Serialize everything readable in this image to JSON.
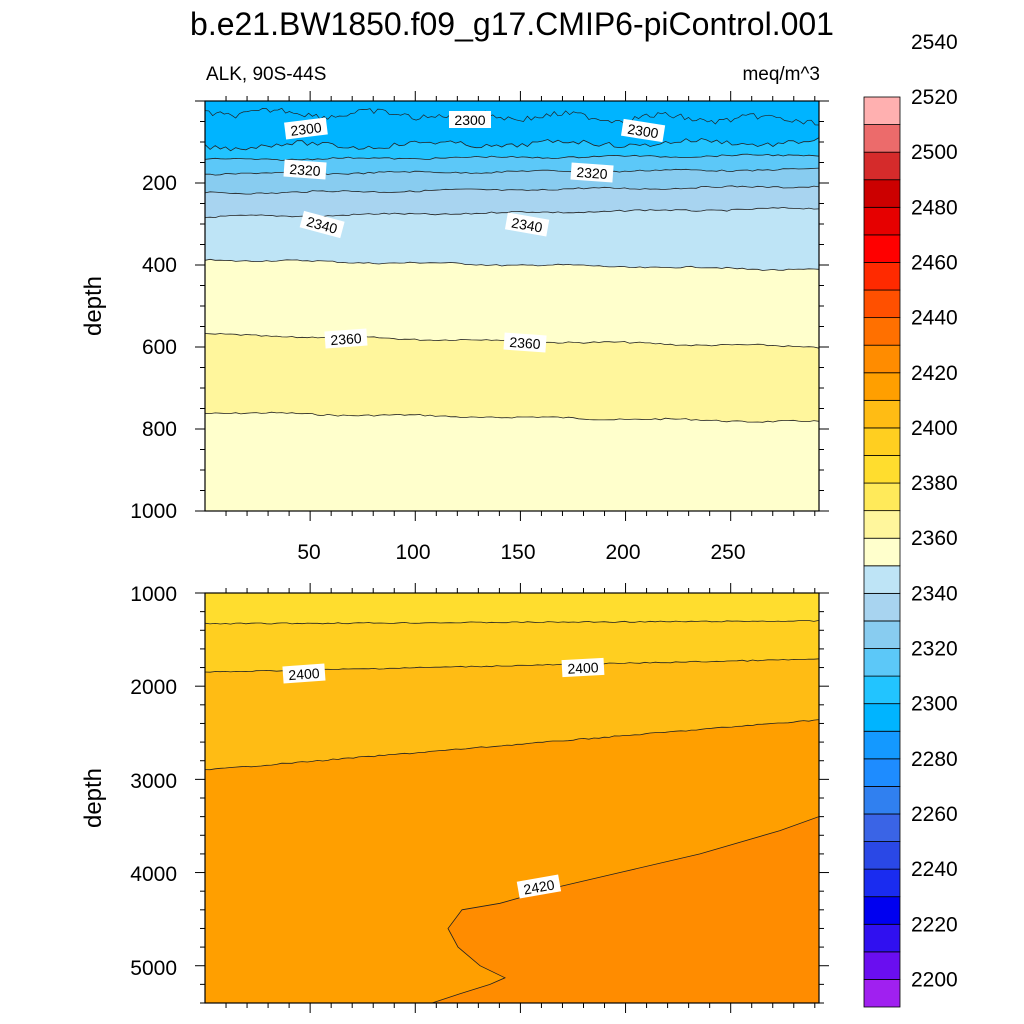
{
  "title": "b.e21.BW1850.f09_g17.CMIP6-piControl.001",
  "subtitle_left": "ALK, 90S-44S",
  "subtitle_right": "meq/m^3",
  "colorbar": {
    "colors": [
      "#a020f0",
      "#6a0ef0",
      "#3010f0",
      "#0000f0",
      "#1a2cf0",
      "#2a48e6",
      "#3a64e6",
      "#3080f0",
      "#1e8cff",
      "#1499ff",
      "#00b4ff",
      "#22c4ff",
      "#5cc8f8",
      "#88ccf0",
      "#a8d4f0",
      "#bee4f6",
      "#ffffcc",
      "#fff69c",
      "#ffea5a",
      "#ffdd2e",
      "#ffcf20",
      "#ffbc14",
      "#ff9f00",
      "#ff8c00",
      "#ff7000",
      "#ff5000",
      "#ff2a00",
      "#ff0000",
      "#e60000",
      "#cc0000",
      "#d52b2b",
      "#ec6b6b",
      "#ffb0b0"
    ],
    "labels": [
      "2200",
      "2220",
      "2240",
      "2260",
      "2280",
      "2300",
      "2320",
      "2340",
      "2360",
      "2380",
      "2400",
      "2420",
      "2440",
      "2460",
      "2480",
      "2500",
      "2520",
      "2540"
    ]
  },
  "chart_data": [
    {
      "type": "contour",
      "panel": "upper",
      "xlim": [
        0,
        292
      ],
      "ylim": [
        1000,
        0
      ],
      "ylabel": "depth",
      "xticks": [
        "50",
        "100",
        "150",
        "200",
        "250"
      ],
      "yticks": [
        "200",
        "400",
        "600",
        "800",
        "1000"
      ],
      "contour_labels": [
        "2300",
        "2300",
        "2300",
        "2320",
        "2320",
        "2340",
        "2340",
        "2360",
        "2360"
      ],
      "levels": [
        {
          "value": 2300,
          "depth_left": 110,
          "depth_right": 100
        },
        {
          "value": 2310,
          "depth_left": 143,
          "depth_right": 132
        },
        {
          "value": 2320,
          "depth_left": 178,
          "depth_right": 167
        },
        {
          "value": 2330,
          "depth_left": 225,
          "depth_right": 208
        },
        {
          "value": 2340,
          "depth_left": 283,
          "depth_right": 262
        },
        {
          "value": 2350,
          "depth_left": 387,
          "depth_right": 412
        },
        {
          "value": 2360,
          "depth_left": 570,
          "depth_right": 600
        },
        {
          "value": 2370,
          "depth_left": 760,
          "depth_right": 783
        }
      ]
    },
    {
      "type": "contour",
      "panel": "lower",
      "xlim": [
        0,
        292
      ],
      "ylim": [
        5400,
        1000
      ],
      "ylabel": "depth",
      "yticks": [
        "1000",
        "2000",
        "3000",
        "4000",
        "5000"
      ],
      "contour_labels": [
        "2400",
        "2400",
        "2420"
      ],
      "levels": [
        {
          "value": 2390,
          "depth_left": 1330,
          "depth_right": 1300
        },
        {
          "value": 2400,
          "depth_left": 1850,
          "depth_right": 1710
        },
        {
          "value": 2410,
          "depth_left": 2900,
          "depth_right": 2360
        },
        {
          "value": 2420,
          "depth_left": 5400,
          "depth_right": 3400
        }
      ]
    }
  ]
}
